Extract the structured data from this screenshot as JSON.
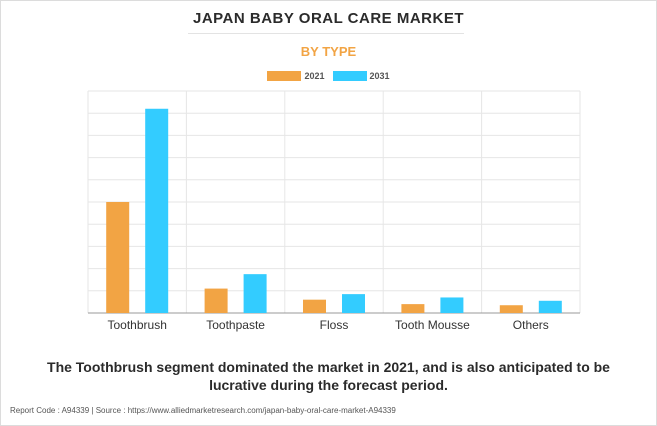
{
  "chart_data": {
    "type": "bar",
    "title": "JAPAN BABY ORAL CARE MARKET",
    "subtitle": "BY TYPE",
    "categories": [
      "Toothbrush",
      "Toothpaste",
      "Floss",
      "Tooth Mousse",
      "Others"
    ],
    "series": [
      {
        "name": "2021",
        "color": "#f2a444",
        "values": [
          5.0,
          1.1,
          0.6,
          0.4,
          0.35
        ]
      },
      {
        "name": "2031",
        "color": "#33ccff",
        "values": [
          9.2,
          1.75,
          0.85,
          0.7,
          0.55
        ]
      }
    ],
    "ylim": [
      0,
      10
    ],
    "grid_lines": 10,
    "xlabel": "",
    "ylabel": "",
    "grid": true,
    "legend_position": "top-center"
  },
  "caption": "The Toothbrush segment dominated the market in 2021, and is also anticipated to be lucrative during the forecast period.",
  "footer": "Report Code : A94339  |  Source : https://www.alliedmarketresearch.com/japan-baby-oral-care-market-A94339"
}
